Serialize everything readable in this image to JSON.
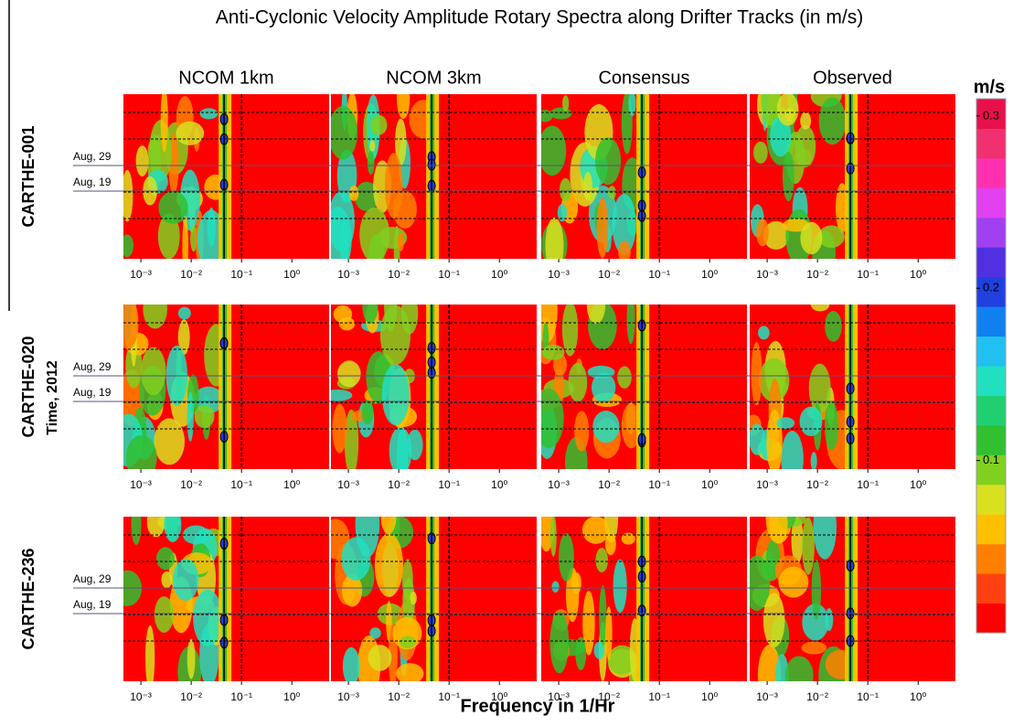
{
  "chart_data": {
    "type": "heatmap-grid",
    "title": "Anti-Cyclonic Velocity Amplitude Rotary Spectra along Drifter Tracks (in m/s)",
    "columns": [
      "NCOM 1km",
      "NCOM 3km",
      "Consensus",
      "Observed"
    ],
    "rows": [
      "CARTHE-001",
      "CARTHE-020",
      "CARTHE-236"
    ],
    "ylabel": "Time, 2012",
    "xlabel": "Frequency in 1/Hr",
    "dates": [
      "Aug, 29",
      "Aug, 19"
    ],
    "log_x": true,
    "xlim": [
      0.00045,
      5.5
    ],
    "xticks": [
      {
        "value": 0.001,
        "label": "10⁻³"
      },
      {
        "value": 0.01,
        "label": "10⁻²"
      },
      {
        "value": 0.1,
        "label": "10⁻¹"
      },
      {
        "value": 1,
        "label": "10⁰"
      }
    ],
    "freq_lines": [
      0.045,
      0.1
    ],
    "colorbar": {
      "title": "m/s",
      "lim": [
        0,
        0.31
      ],
      "ticks": [
        0.1,
        0.2,
        0.3
      ],
      "colors": [
        "#ff0000",
        "#ff4010",
        "#ff8000",
        "#ffc000",
        "#d8e020",
        "#80d020",
        "#30c030",
        "#20d070",
        "#20e0c0",
        "#20c0f0",
        "#1080f0",
        "#2040e0",
        "#5030e0",
        "#a040f0",
        "#e040f0",
        "#ff30b0",
        "#f03070",
        "#e8104a"
      ]
    }
  }
}
